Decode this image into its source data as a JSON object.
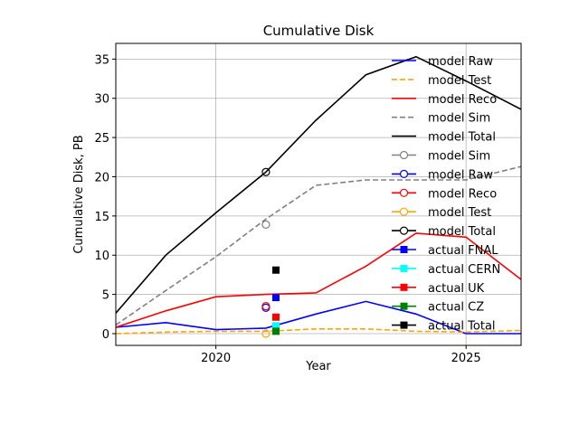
{
  "chart_data": {
    "type": "line",
    "title": "Cumulative Disk",
    "xlabel": "Year",
    "ylabel": "Cumulative Disk, PB",
    "xlim": [
      2018.0,
      2026.1
    ],
    "ylim": [
      -1.5,
      37
    ],
    "xticks": [
      2020,
      2025
    ],
    "yticks": [
      0,
      5,
      10,
      15,
      20,
      25,
      30,
      35
    ],
    "grid": true,
    "legend_position": "right",
    "colors": {
      "raw": "#0000ff",
      "test": "#ffa500",
      "reco": "#ff0000",
      "sim": "#808080",
      "total": "#000000",
      "fnal": "#0000ff",
      "cern": "#00ffff",
      "uk": "#ff0000",
      "cz": "#008000",
      "actual_total": "#000000"
    },
    "lines": [
      {
        "name": "model Raw",
        "color": "#0000ff",
        "dash": "solid",
        "x": [
          2018,
          2019,
          2020,
          2021,
          2022,
          2023,
          2024,
          2025,
          2026.1
        ],
        "y": [
          0.8,
          1.4,
          0.5,
          0.7,
          2.5,
          4.1,
          2.5,
          0.0,
          0.0
        ]
      },
      {
        "name": "model Test",
        "color": "#ffa500",
        "dash": "dashed",
        "x": [
          2018,
          2019,
          2020,
          2021,
          2022,
          2023,
          2024,
          2025,
          2026.1
        ],
        "y": [
          0.0,
          0.2,
          0.3,
          0.3,
          0.6,
          0.6,
          0.3,
          0.2,
          0.4
        ]
      },
      {
        "name": "model Reco",
        "color": "#ff0000",
        "dash": "solid",
        "x": [
          2018,
          2019,
          2020,
          2021,
          2022,
          2023,
          2024,
          2025,
          2026.1
        ],
        "y": [
          0.8,
          2.9,
          4.7,
          5.0,
          5.2,
          8.6,
          12.8,
          12.3,
          6.9
        ]
      },
      {
        "name": "model Sim",
        "color": "#808080",
        "dash": "dashed",
        "x": [
          2018,
          2019,
          2020,
          2021,
          2022,
          2023,
          2024,
          2025,
          2026.1
        ],
        "y": [
          1.1,
          5.5,
          9.8,
          14.6,
          18.9,
          19.6,
          19.6,
          19.6,
          21.3
        ]
      },
      {
        "name": "model Total",
        "color": "#000000",
        "dash": "solid",
        "x": [
          2018,
          2019,
          2020,
          2021,
          2022,
          2023,
          2024,
          2025,
          2026.1
        ],
        "y": [
          2.6,
          10.0,
          15.4,
          20.6,
          27.2,
          33.0,
          35.3,
          32.2,
          28.6
        ]
      }
    ],
    "model_points": [
      {
        "name": "model Sim",
        "color": "#808080",
        "x": 2021.0,
        "y": 13.9
      },
      {
        "name": "model Raw",
        "color": "#0000ff",
        "x": 2021.0,
        "y": 3.3
      },
      {
        "name": "model Reco",
        "color": "#ff0000",
        "x": 2021.0,
        "y": 3.5
      },
      {
        "name": "model Test",
        "color": "#ffa500",
        "x": 2021.0,
        "y": 0.0
      },
      {
        "name": "model Total",
        "color": "#000000",
        "x": 2021.0,
        "y": 20.6
      }
    ],
    "actual_points": [
      {
        "name": "actual  FNAL",
        "color": "#0000ff",
        "x": 2021.2,
        "y": 4.6
      },
      {
        "name": "actual  CERN",
        "color": "#00ffff",
        "x": 2021.2,
        "y": 1.0
      },
      {
        "name": "actual  UK",
        "color": "#ff0000",
        "x": 2021.2,
        "y": 2.1
      },
      {
        "name": "actual  CZ",
        "color": "#008000",
        "x": 2021.2,
        "y": 0.3
      },
      {
        "name": "actual  Total",
        "color": "#000000",
        "x": 2021.2,
        "y": 8.1
      }
    ],
    "legend": [
      {
        "label": "model Raw",
        "color": "#0000ff",
        "kind": "line",
        "dash": "solid"
      },
      {
        "label": "model Test",
        "color": "#ffa500",
        "kind": "line",
        "dash": "dashed"
      },
      {
        "label": "model Reco",
        "color": "#ff0000",
        "kind": "line",
        "dash": "solid"
      },
      {
        "label": "model Sim",
        "color": "#808080",
        "kind": "line",
        "dash": "dashed"
      },
      {
        "label": "model Total",
        "color": "#000000",
        "kind": "line",
        "dash": "solid"
      },
      {
        "label": "model Sim",
        "color": "#808080",
        "kind": "circle"
      },
      {
        "label": "model Raw",
        "color": "#0000ff",
        "kind": "circle"
      },
      {
        "label": "model Reco",
        "color": "#ff0000",
        "kind": "circle"
      },
      {
        "label": "model Test",
        "color": "#ffa500",
        "kind": "circle"
      },
      {
        "label": "model Total",
        "color": "#000000",
        "kind": "circle"
      },
      {
        "label": "actual  FNAL",
        "color": "#0000ff",
        "kind": "square"
      },
      {
        "label": "actual  CERN",
        "color": "#00ffff",
        "kind": "square"
      },
      {
        "label": "actual  UK",
        "color": "#ff0000",
        "kind": "square"
      },
      {
        "label": "actual  CZ",
        "color": "#008000",
        "kind": "square"
      },
      {
        "label": "actual  Total",
        "color": "#000000",
        "kind": "square"
      }
    ]
  }
}
